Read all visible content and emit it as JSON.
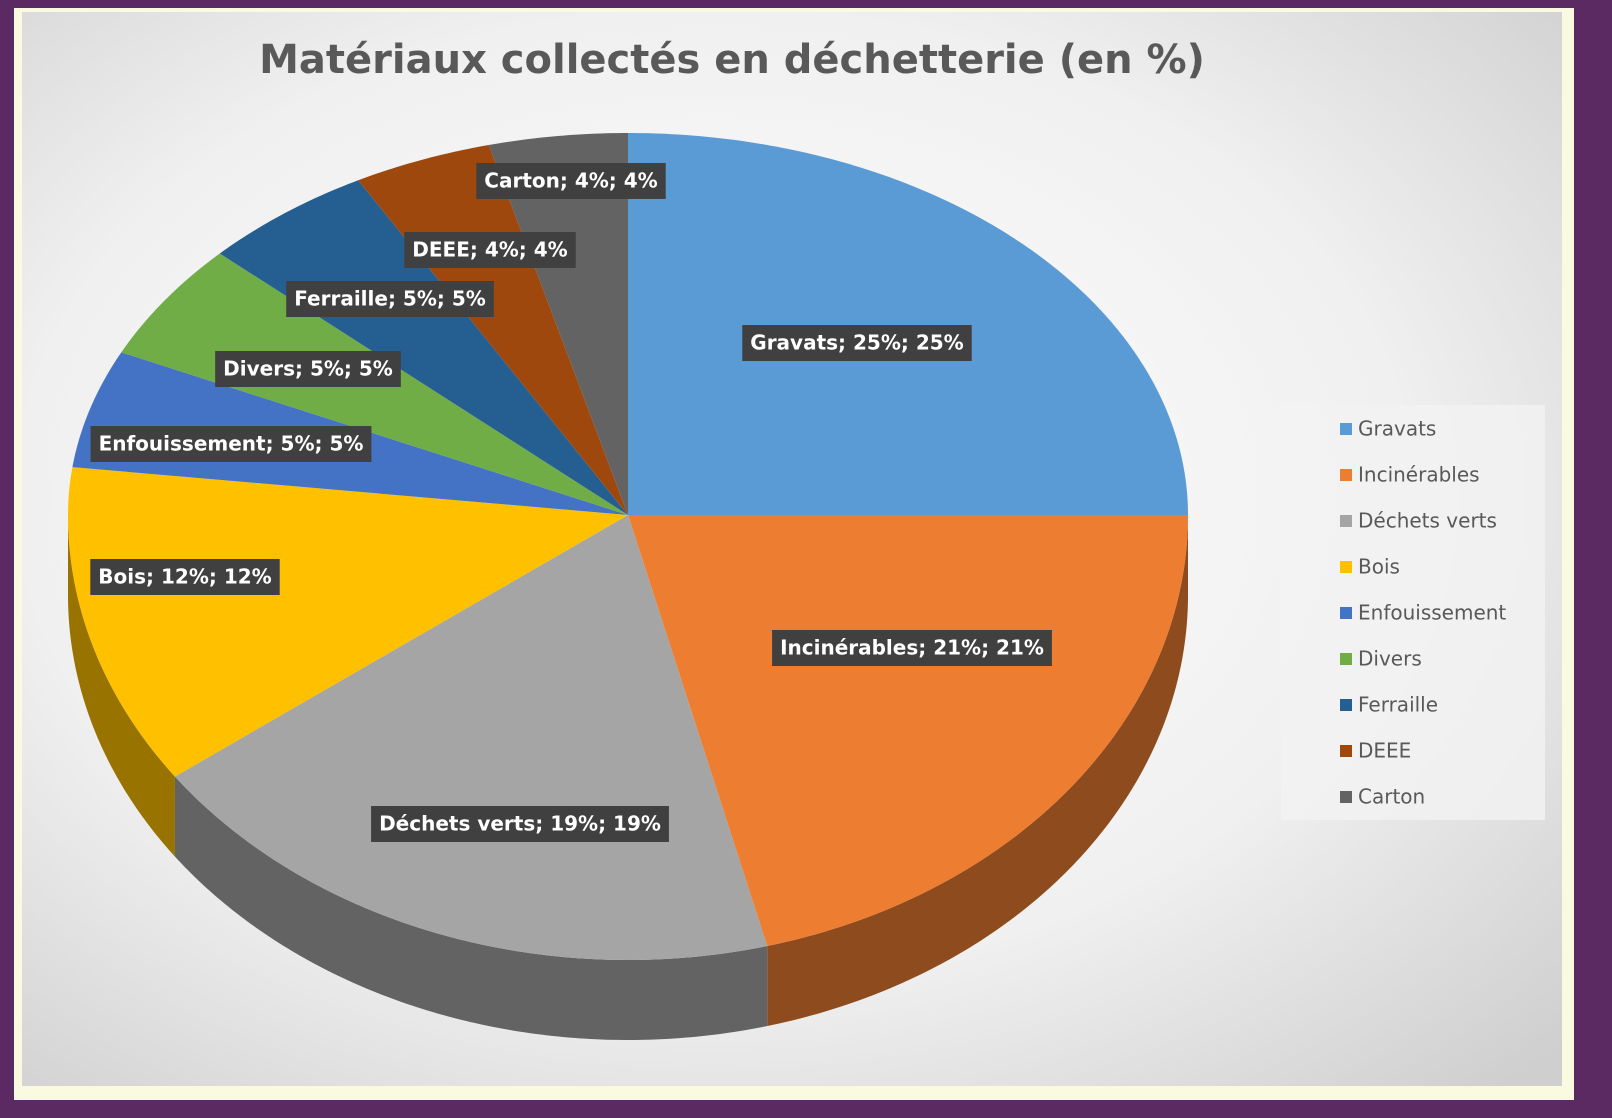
{
  "chart_data": {
    "type": "pie",
    "title": "Matériaux collectés en déchetterie (en %)",
    "categories": [
      "Gravats",
      "Incinérables",
      "Déchets verts",
      "Bois",
      "Enfouissement",
      "Divers",
      "Ferraille",
      "DEEE",
      "Carton"
    ],
    "values": [
      25,
      21,
      19,
      12,
      5,
      5,
      5,
      4,
      4
    ],
    "value_labels": [
      "Gravats; 25%; 25%",
      "Incinérables; 21%; 21%",
      "Déchets verts; 19%; 19%",
      "Bois; 12%; 12%",
      "Enfouissement; 5%; 5%",
      "Divers; 5%; 5%",
      "Ferraille; 5%; 5%",
      "DEEE; 4%; 4%",
      "Carton; 4%; 4%"
    ],
    "colors": [
      "#5b9bd5",
      "#ed7d31",
      "#a5a5a5",
      "#ffc000",
      "#4472c4",
      "#70ad47",
      "#255e91",
      "#9e480e",
      "#636363"
    ],
    "legend": "right"
  }
}
